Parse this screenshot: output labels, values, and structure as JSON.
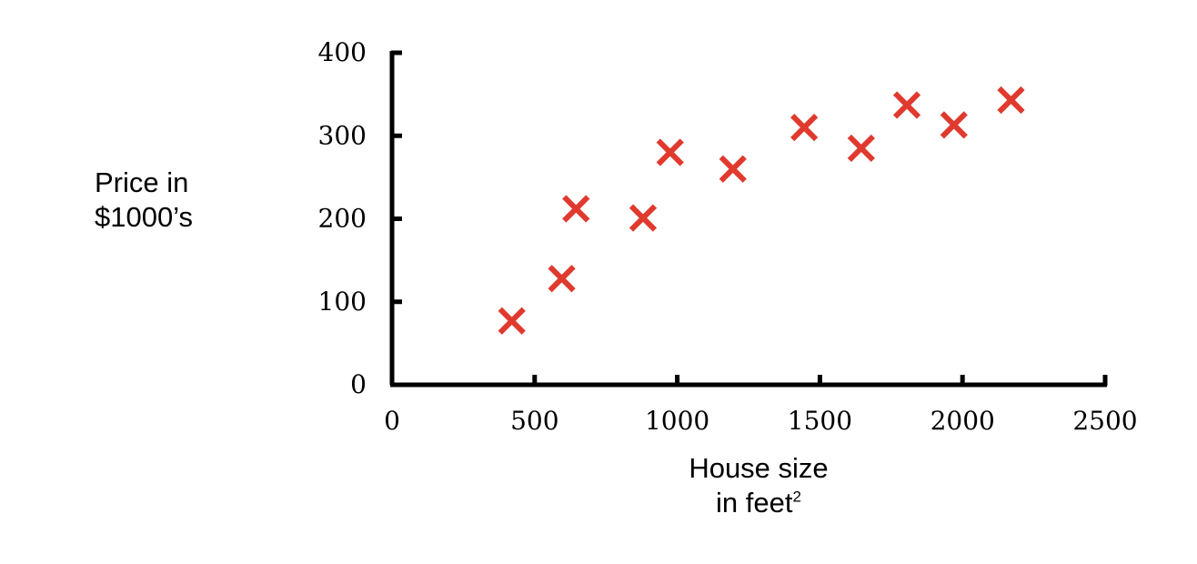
{
  "chart_data": {
    "type": "scatter",
    "title": "",
    "xlabel_line1": "House size",
    "xlabel_line2": "in feet",
    "xlabel_sup": "2",
    "ylabel_line1": "Price in",
    "ylabel_line2": "$1000’s",
    "xlim": [
      0,
      2500
    ],
    "ylim": [
      0,
      400
    ],
    "xticks": [
      "0",
      "500",
      "1000",
      "1500",
      "2000",
      "2500"
    ],
    "yticks": [
      "0",
      "100",
      "200",
      "300",
      "400"
    ],
    "grid": false,
    "marker": "x",
    "marker_color": "#e03a2e",
    "series": [
      {
        "x": [
          420,
          595,
          645,
          880,
          975,
          1195,
          1445,
          1645,
          1805,
          1970,
          2170
        ],
        "y": [
          77,
          128,
          212,
          201,
          280,
          260,
          310,
          285,
          337,
          313,
          343
        ]
      }
    ]
  }
}
